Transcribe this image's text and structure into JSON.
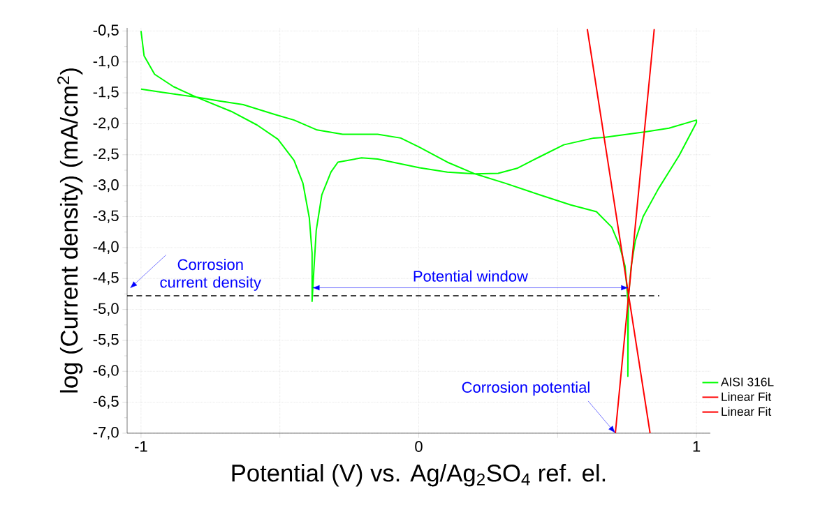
{
  "chart_data": {
    "type": "line",
    "xlabel": "Potential (V) vs. Ag/Ag$_{2}$SO$_{4}$ ref. el.",
    "ylabel": "log (Current density) (mA/cm$^{2}$)",
    "xlim": [
      -1.05,
      1.05
    ],
    "ylim": [
      -7.0,
      -0.45
    ],
    "xticks": [
      -1,
      {
        "value": -0.5,
        "label": null
      },
      0,
      {
        "value": 0.5,
        "label": null
      },
      1
    ],
    "yticks": [
      {
        "value": -7.0,
        "label": "-7,0"
      },
      {
        "value": -6.5,
        "label": "-6,5"
      },
      {
        "value": -6.0,
        "label": "-6,0"
      },
      {
        "value": -5.5,
        "label": "-5,5"
      },
      {
        "value": -5.0,
        "label": "-5,0"
      },
      {
        "value": -4.5,
        "label": "-4,5"
      },
      {
        "value": -4.0,
        "label": "-4,0"
      },
      {
        "value": -3.5,
        "label": "-3,5"
      },
      {
        "value": -3.0,
        "label": "-3,0"
      },
      {
        "value": -2.5,
        "label": "-2,5"
      },
      {
        "value": -2.0,
        "label": "-2,0"
      },
      {
        "value": -1.5,
        "label": "-1,5"
      },
      {
        "value": -1.0,
        "label": "-1,0"
      },
      {
        "value": -0.5,
        "label": "-0,5"
      }
    ],
    "grid": true,
    "legend": "bottom right",
    "series": [
      {
        "name": "AISI 316L",
        "color": "#00ff00",
        "x": [
          -1.0,
          -0.989,
          -0.951,
          -0.883,
          -0.8,
          -0.675,
          -0.582,
          -0.507,
          -0.449,
          -0.417,
          -0.394,
          -0.384,
          -0.384,
          -0.379,
          -0.369,
          -0.349,
          -0.316,
          -0.291,
          -0.206,
          -0.148,
          0.003,
          0.103,
          0.203,
          0.286,
          0.354,
          0.437,
          0.522,
          0.63,
          0.667,
          0.816,
          0.901,
          1.0,
          1.0,
          0.938,
          0.863,
          0.808,
          0.78,
          0.765,
          0.755,
          0.753,
          0.753,
          0.743,
          0.723,
          0.695,
          0.64,
          0.547,
          0.437,
          0.311,
          0.203,
          0.103,
          0.003,
          -0.065,
          -0.148,
          -0.274,
          -0.366,
          -0.449,
          -0.517,
          -0.632,
          -0.718,
          -0.8,
          -0.925,
          -1.0
        ],
        "values": [
          -0.5,
          -0.9,
          -1.2,
          -1.4,
          -1.57,
          -1.8,
          -2.02,
          -2.25,
          -2.59,
          -2.96,
          -3.52,
          -4.09,
          -4.87,
          -4.47,
          -3.72,
          -3.15,
          -2.78,
          -2.62,
          -2.55,
          -2.57,
          -2.71,
          -2.78,
          -2.81,
          -2.8,
          -2.72,
          -2.53,
          -2.34,
          -2.23,
          -2.22,
          -2.13,
          -2.07,
          -1.94,
          -1.98,
          -2.51,
          -3.05,
          -3.5,
          -3.89,
          -4.3,
          -4.8,
          -6.08,
          -4.85,
          -4.3,
          -3.97,
          -3.67,
          -3.42,
          -3.31,
          -3.15,
          -2.96,
          -2.81,
          -2.62,
          -2.38,
          -2.23,
          -2.17,
          -2.17,
          -2.1,
          -1.94,
          -1.85,
          -1.69,
          -1.63,
          -1.57,
          -1.49,
          -1.44
        ]
      },
      {
        "name": "Linear Fit",
        "color": "#ff0000",
        "x": [
          0.607,
          0.833
        ],
        "values": [
          -0.47,
          -7.0
        ]
      },
      {
        "name": "Linear Fit",
        "color": "#ff0000",
        "x": [
          0.848,
          0.708
        ],
        "values": [
          -0.47,
          -7.0
        ]
      }
    ],
    "ref_lines": [
      {
        "axis": "y",
        "value": -4.78,
        "color": "#000000",
        "line_style": "dashed"
      }
    ],
    "annotations": [
      "Corrosion current density",
      "Potential window",
      {
        "text": "Corrosion potential",
        "x": 0.708,
        "y": -7.0
      }
    ]
  }
}
